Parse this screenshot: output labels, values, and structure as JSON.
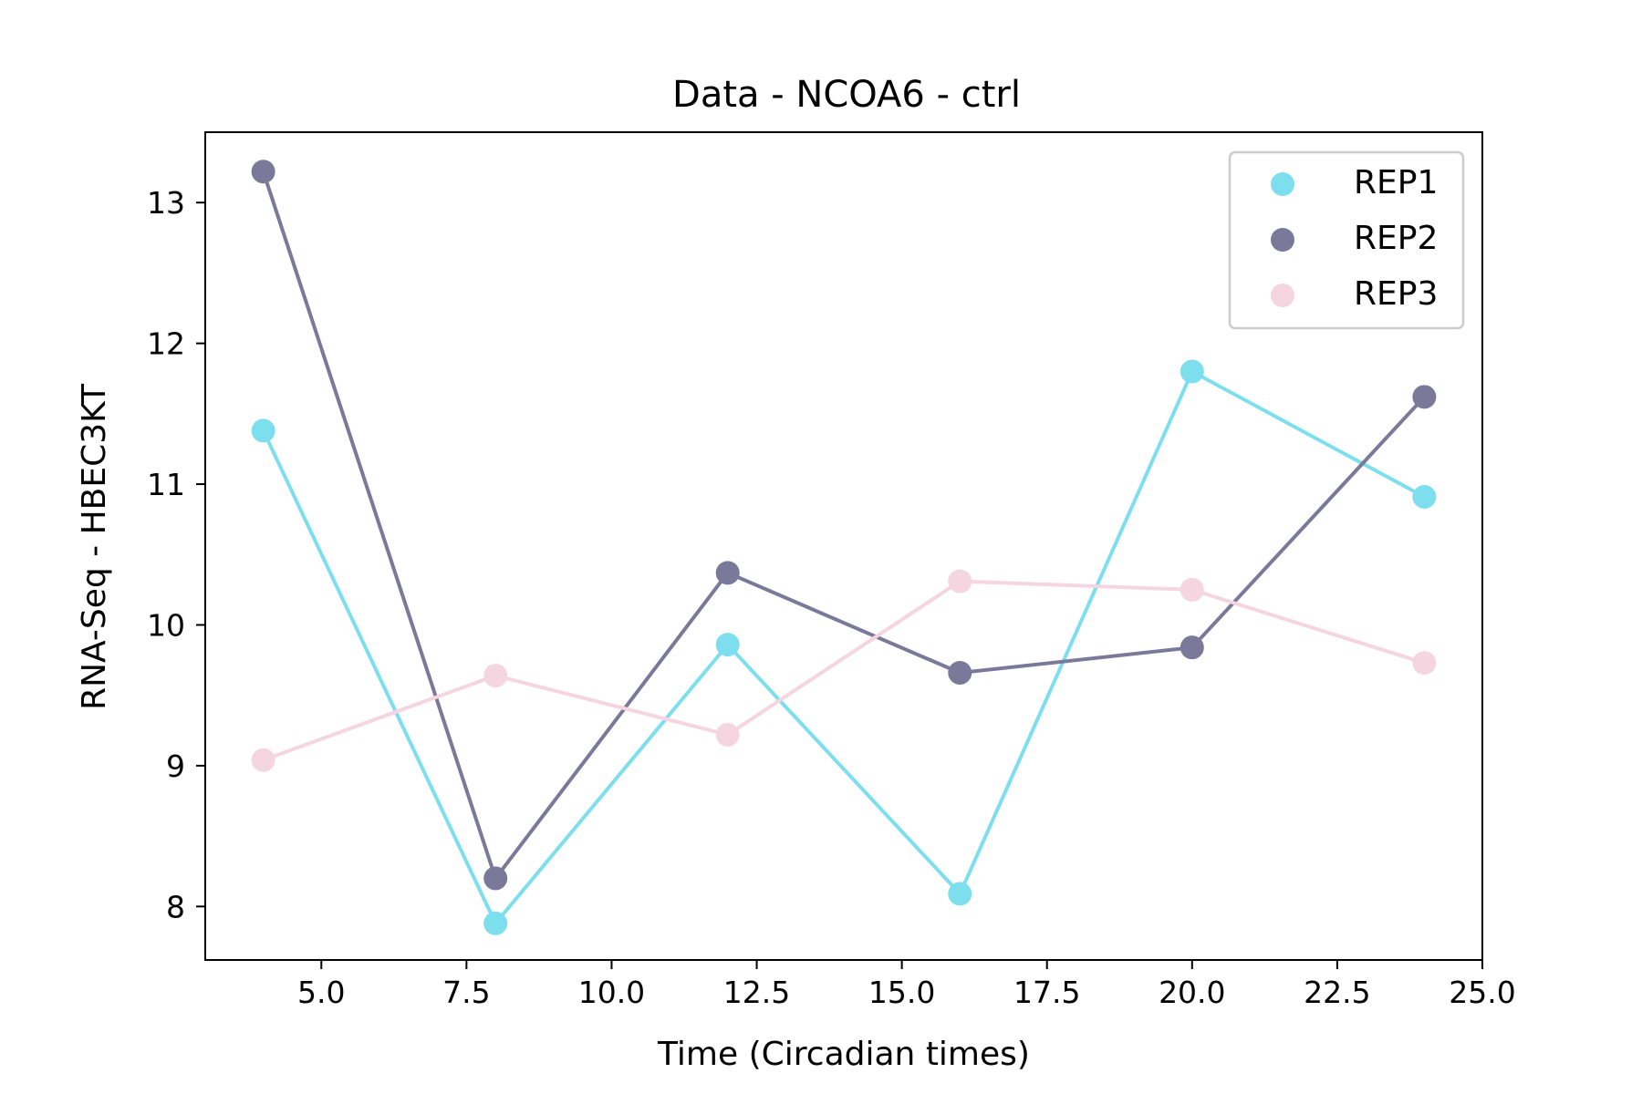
{
  "chart_data": {
    "type": "line",
    "title": "Data - NCOA6 - ctrl",
    "xlabel": "Time (Circadian times)",
    "ylabel": "RNA-Seq - HBEC3KT",
    "xlim": [
      3.0,
      25.0
    ],
    "ylim": [
      7.62,
      13.5
    ],
    "xticks": [
      5.0,
      7.5,
      10.0,
      12.5,
      15.0,
      17.5,
      20.0,
      22.5,
      25.0
    ],
    "xtick_labels": [
      "5.0",
      "7.5",
      "10.0",
      "12.5",
      "15.0",
      "17.5",
      "20.0",
      "22.5",
      "25.0"
    ],
    "yticks": [
      8,
      9,
      10,
      11,
      12,
      13
    ],
    "ytick_labels": [
      "8",
      "9",
      "10",
      "11",
      "12",
      "13"
    ],
    "grid": false,
    "legend_position": "top-right",
    "x": [
      4,
      8,
      12,
      16,
      20,
      24
    ],
    "series": [
      {
        "name": "REP1",
        "color": "#7ddfee",
        "values": [
          11.38,
          7.88,
          9.86,
          8.09,
          11.8,
          10.91
        ]
      },
      {
        "name": "REP2",
        "color": "#7b799a",
        "values": [
          13.22,
          8.2,
          10.37,
          9.66,
          9.84,
          11.62
        ]
      },
      {
        "name": "REP3",
        "color": "#f5d5df",
        "values": [
          9.04,
          9.64,
          9.22,
          10.31,
          10.25,
          9.73
        ]
      }
    ]
  }
}
